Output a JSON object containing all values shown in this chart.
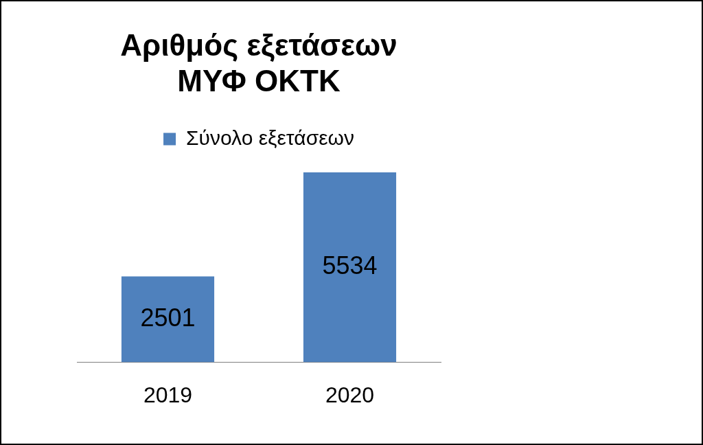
{
  "chart_data": {
    "type": "bar",
    "title": "Αριθμός εξετάσεων\nΜΥΦ ΟΚΤΚ",
    "categories": [
      "2019",
      "2020"
    ],
    "series": [
      {
        "name": "Σύνολο εξετάσεων",
        "color": "#4f81bd",
        "values": [
          2501,
          5534
        ]
      }
    ],
    "data_labels": true,
    "legend": "top",
    "grid": false
  }
}
